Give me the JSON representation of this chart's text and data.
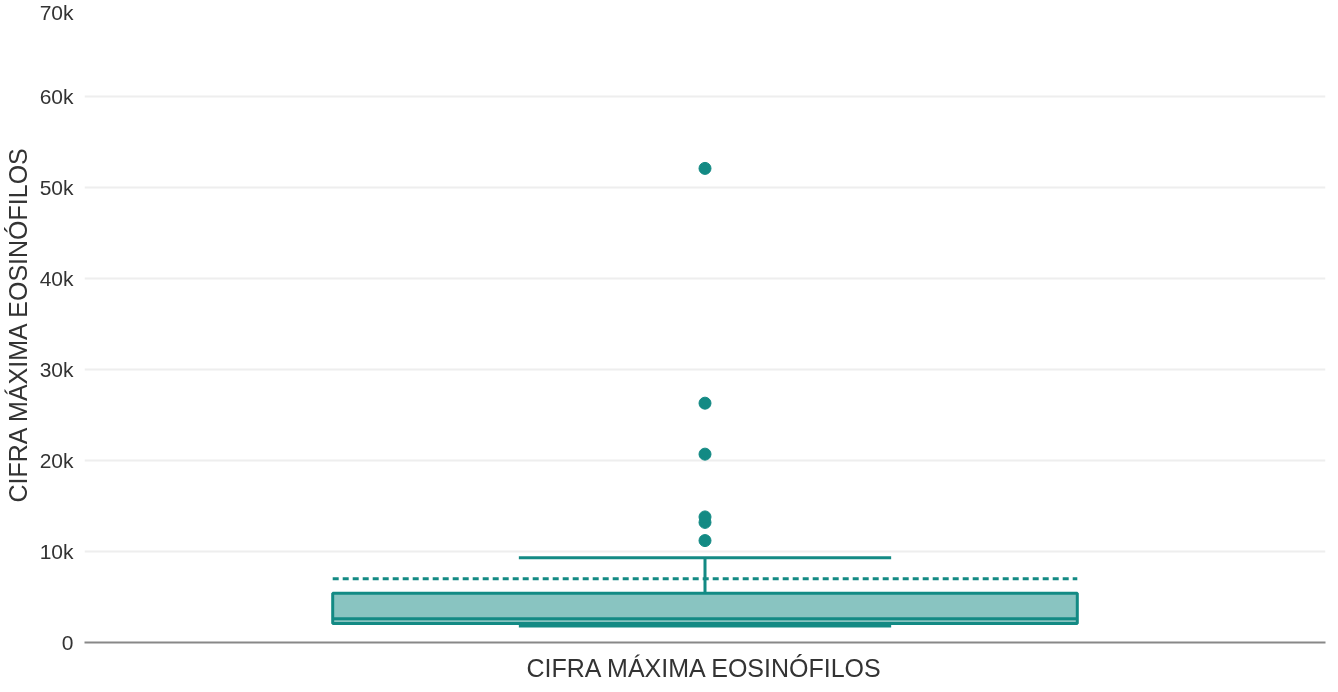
{
  "chart_data": {
    "type": "box",
    "ylabel": "CIFRA MÁXIMA EOSINÓFILOS",
    "xlabel": "CIFRA MÁXIMA EOSINÓFILOS",
    "categories": [
      null
    ],
    "series": [
      {
        "color": "#138a84",
        "boxes": [
          {
            "low": 1800,
            "q1": 2100,
            "median": 2600,
            "q3": 5400,
            "high": 9300,
            "mean": 7000,
            "outliers": [
              11200,
              13200,
              13800,
              20700,
              26300,
              52100
            ]
          }
        ]
      }
    ],
    "ylim": [
      0,
      70000
    ],
    "yticks": [
      {
        "value": 0,
        "label": "0"
      },
      {
        "value": 10000,
        "label": "10k"
      },
      {
        "value": 20000,
        "label": "20k"
      },
      {
        "value": 30000,
        "label": "30k"
      },
      {
        "value": 40000,
        "label": "40k"
      },
      {
        "value": 50000,
        "label": "50k"
      },
      {
        "value": 60000,
        "label": "60k"
      },
      {
        "value": 70000,
        "label": "70k"
      }
    ],
    "grid": "y"
  }
}
